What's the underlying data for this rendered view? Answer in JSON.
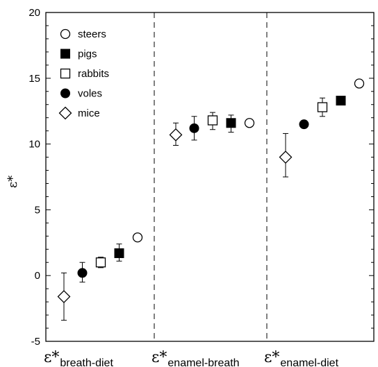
{
  "chart_data": {
    "type": "scatter",
    "ylabel": "ε*",
    "ylim": [
      -5,
      20
    ],
    "y_ticks": [
      "-5",
      "0",
      "5",
      "10",
      "15",
      "20"
    ],
    "groups": [
      {
        "main": "ε*",
        "sub": "breath-diet"
      },
      {
        "main": "ε*",
        "sub": "enamel-breath"
      },
      {
        "main": "ε*",
        "sub": "enamel-diet"
      }
    ],
    "legend": {
      "position": "top-left",
      "items": [
        {
          "label": "steers",
          "marker": "circle-open"
        },
        {
          "label": "pigs",
          "marker": "square-filled"
        },
        {
          "label": "rabbits",
          "marker": "square-open"
        },
        {
          "label": "voles",
          "marker": "circle-filled"
        },
        {
          "label": "mice",
          "marker": "diamond-open"
        }
      ]
    },
    "series": [
      {
        "name": "mice",
        "marker": "diamond-open",
        "points": [
          {
            "group": 0,
            "y": -1.6,
            "err_low": -3.4,
            "err_high": 0.2
          },
          {
            "group": 1,
            "y": 10.7,
            "err_low": 9.9,
            "err_high": 11.6
          },
          {
            "group": 2,
            "y": 9.0,
            "err_low": 7.5,
            "err_high": 10.8
          }
        ]
      },
      {
        "name": "voles",
        "marker": "circle-filled",
        "points": [
          {
            "group": 0,
            "y": 0.2,
            "err_low": -0.5,
            "err_high": 1.0
          },
          {
            "group": 1,
            "y": 11.2,
            "err_low": 10.3,
            "err_high": 12.1
          },
          {
            "group": 2,
            "y": 11.5,
            "err_low": 11.3,
            "err_high": 11.7
          }
        ]
      },
      {
        "name": "rabbits",
        "marker": "square-open",
        "points": [
          {
            "group": 0,
            "y": 1.0,
            "err_low": 0.6,
            "err_high": 1.4
          },
          {
            "group": 1,
            "y": 11.8,
            "err_low": 11.1,
            "err_high": 12.4
          },
          {
            "group": 2,
            "y": 12.8,
            "err_low": 12.1,
            "err_high": 13.5
          }
        ]
      },
      {
        "name": "pigs",
        "marker": "square-filled",
        "points": [
          {
            "group": 0,
            "y": 1.7,
            "err_low": 1.1,
            "err_high": 2.4
          },
          {
            "group": 1,
            "y": 11.6,
            "err_low": 10.9,
            "err_high": 12.2
          },
          {
            "group": 2,
            "y": 13.3,
            "err_low": 13.1,
            "err_high": 13.5
          }
        ]
      },
      {
        "name": "steers",
        "marker": "circle-open",
        "points": [
          {
            "group": 0,
            "y": 2.9,
            "err_low": 2.7,
            "err_high": 3.1
          },
          {
            "group": 1,
            "y": 11.6,
            "err_low": 11.5,
            "err_high": 11.7
          },
          {
            "group": 2,
            "y": 14.6,
            "err_low": 14.5,
            "err_high": 14.7
          }
        ]
      }
    ]
  }
}
